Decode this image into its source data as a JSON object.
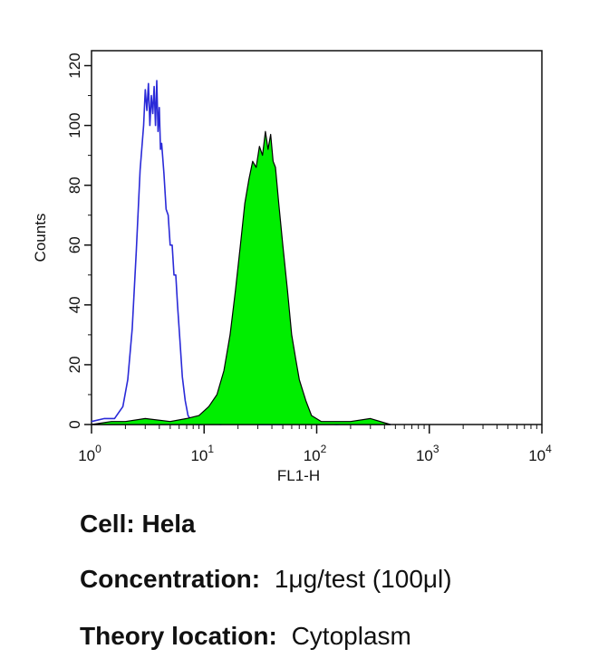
{
  "chart_data": {
    "type": "area",
    "xlabel": "FL1-H",
    "ylabel": "Counts",
    "x_scale": "log",
    "xlim": [
      1,
      10000
    ],
    "ylim": [
      0,
      125
    ],
    "x_ticks": [
      {
        "base": "10",
        "exp": "0",
        "value": 1
      },
      {
        "base": "10",
        "exp": "1",
        "value": 10
      },
      {
        "base": "10",
        "exp": "2",
        "value": 100
      },
      {
        "base": "10",
        "exp": "3",
        "value": 1000
      },
      {
        "base": "10",
        "exp": "4",
        "value": 10000
      }
    ],
    "y_ticks": [
      0,
      20,
      40,
      60,
      80,
      100,
      120
    ],
    "grid": false,
    "series": [
      {
        "style": "outline",
        "color": "#2a2ad8",
        "x": [
          1.0,
          1.3,
          1.6,
          1.9,
          2.1,
          2.3,
          2.5,
          2.7,
          2.9,
          3.0,
          3.1,
          3.2,
          3.3,
          3.4,
          3.5,
          3.6,
          3.7,
          3.8,
          3.9,
          4.0,
          4.1,
          4.2,
          4.4,
          4.6,
          4.8,
          5.0,
          5.2,
          5.4,
          5.6,
          5.8,
          6.1,
          6.4,
          6.8,
          7.2,
          7.8,
          8.5,
          9.5,
          11,
          14,
          20,
          30,
          50,
          80,
          150,
          300,
          450
        ],
        "y": [
          1,
          2,
          2,
          6,
          15,
          32,
          58,
          85,
          100,
          112,
          105,
          114,
          100,
          110,
          104,
          113,
          100,
          115,
          98,
          106,
          92,
          94,
          84,
          72,
          70,
          60,
          60,
          50,
          50,
          40,
          28,
          16,
          8,
          3,
          1,
          0,
          0,
          1,
          0,
          1,
          0,
          0,
          1,
          0,
          1,
          0
        ]
      },
      {
        "style": "filled",
        "color": "#00ee00",
        "edge": "#000000",
        "x": [
          1.0,
          1.5,
          2.0,
          3.0,
          5.0,
          7.0,
          9.0,
          11,
          13,
          15,
          17,
          19,
          21,
          23,
          25,
          27,
          29,
          31,
          33,
          35,
          37,
          39,
          41,
          43,
          46,
          50,
          55,
          60,
          65,
          70,
          80,
          90,
          110,
          140,
          200,
          300,
          450
        ],
        "y": [
          0,
          1,
          1,
          2,
          1,
          2,
          3,
          6,
          10,
          18,
          30,
          45,
          60,
          74,
          82,
          88,
          86,
          93,
          90,
          98,
          92,
          97,
          88,
          86,
          74,
          60,
          45,
          30,
          22,
          15,
          8,
          3,
          1,
          1,
          1,
          2,
          0
        ]
      }
    ]
  },
  "info": {
    "cell_label": "Cell:",
    "cell_value": "Hela",
    "concentration_label": "Concentration:",
    "concentration_value": "1μg/test (100μl)",
    "theory_label": "Theory location:",
    "theory_value": "Cytoplasm"
  }
}
